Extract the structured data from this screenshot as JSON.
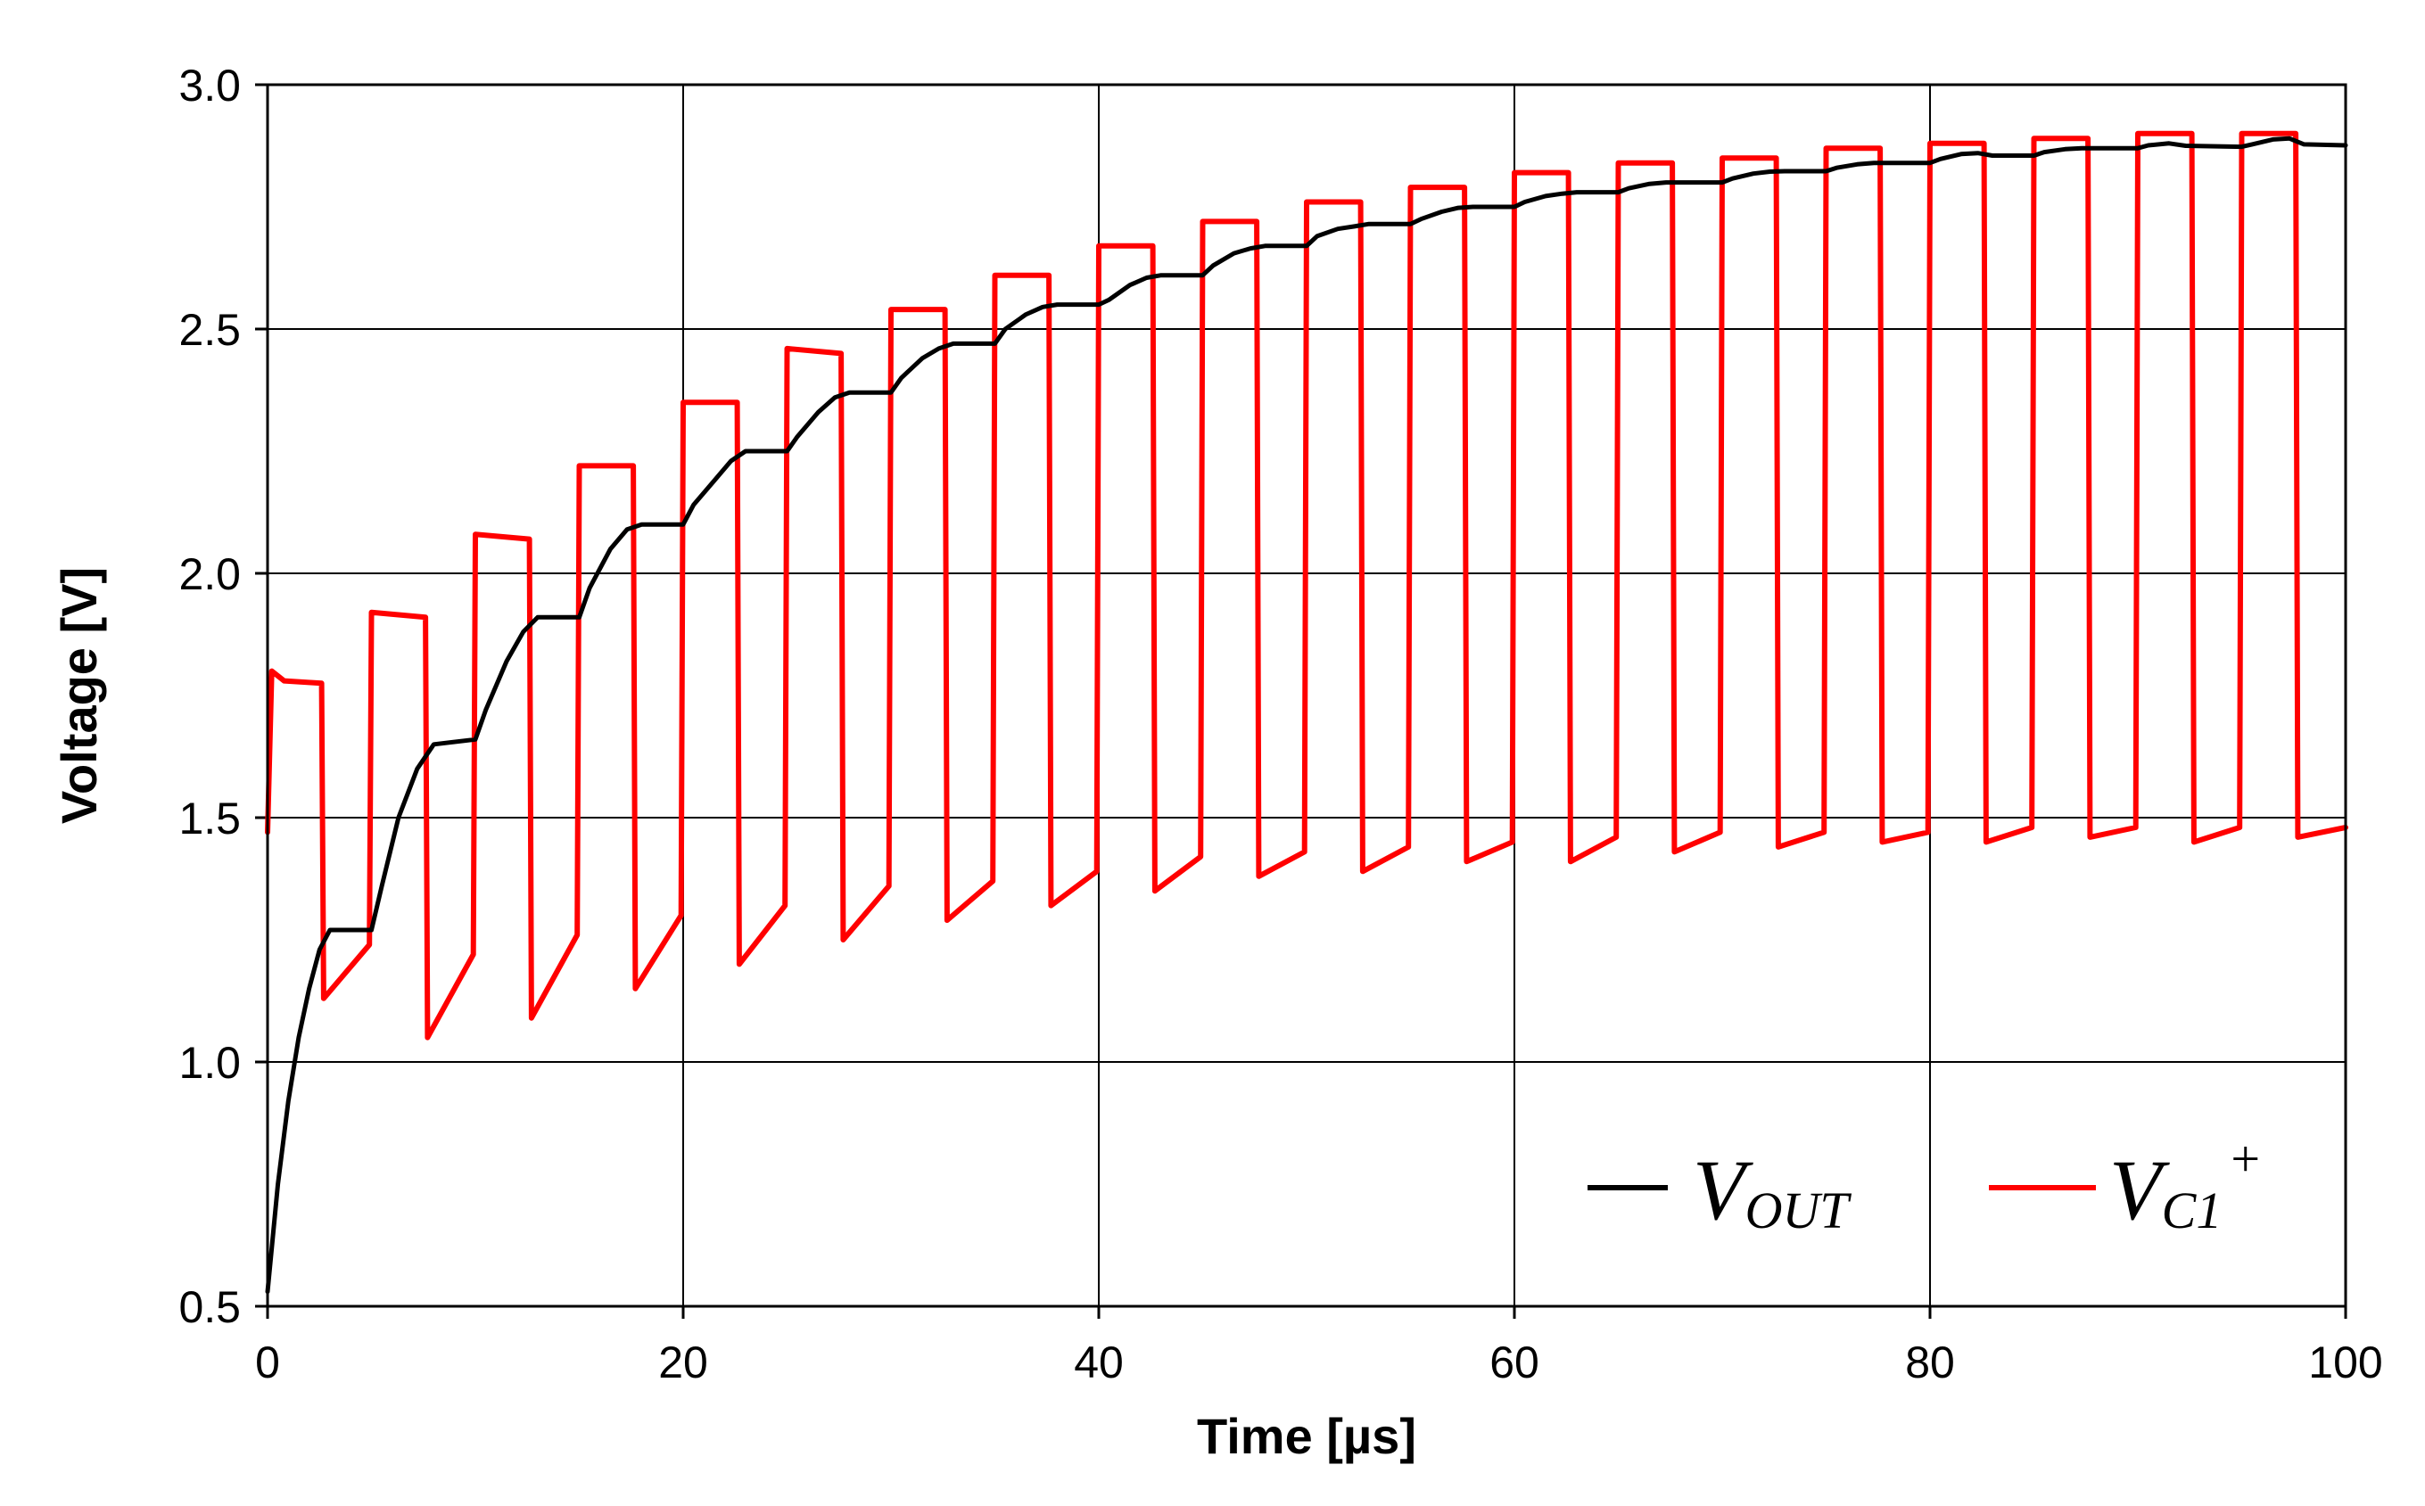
{
  "chart_data": {
    "type": "line",
    "title": "",
    "xlabel": "Time [µs]",
    "ylabel": "Voltage [V]",
    "xlim": [
      0,
      100
    ],
    "ylim": [
      0.5,
      3.0
    ],
    "xticks": [
      "0",
      "20",
      "40",
      "60",
      "80",
      "100"
    ],
    "yticks": [
      "0.5",
      "1.0",
      "1.5",
      "2.0",
      "2.5",
      "3.0"
    ],
    "grid": true,
    "legend_position": "bottom-right",
    "series": [
      {
        "name": "VOUT",
        "legend_main": "V",
        "legend_sub": "OUT",
        "legend_sup": "",
        "color": "#000000",
        "points": [
          [
            0,
            0.53
          ],
          [
            0.5,
            0.75
          ],
          [
            1,
            0.92
          ],
          [
            1.5,
            1.05
          ],
          [
            2,
            1.15
          ],
          [
            2.5,
            1.23
          ],
          [
            3,
            1.27
          ],
          [
            5,
            1.27
          ],
          [
            5.5,
            1.36
          ],
          [
            6.3,
            1.5
          ],
          [
            7.2,
            1.6
          ],
          [
            8,
            1.65
          ],
          [
            10,
            1.66
          ],
          [
            10.5,
            1.72
          ],
          [
            11.5,
            1.82
          ],
          [
            12.3,
            1.88
          ],
          [
            13,
            1.91
          ],
          [
            15,
            1.91
          ],
          [
            15.5,
            1.97
          ],
          [
            16.5,
            2.05
          ],
          [
            17.3,
            2.09
          ],
          [
            18,
            2.1
          ],
          [
            20,
            2.1
          ],
          [
            20.5,
            2.14
          ],
          [
            21.5,
            2.19
          ],
          [
            22.3,
            2.23
          ],
          [
            23,
            2.25
          ],
          [
            25,
            2.25
          ],
          [
            25.5,
            2.28
          ],
          [
            26.5,
            2.33
          ],
          [
            27.3,
            2.36
          ],
          [
            28,
            2.37
          ],
          [
            30,
            2.37
          ],
          [
            30.5,
            2.4
          ],
          [
            31.5,
            2.44
          ],
          [
            32.3,
            2.46
          ],
          [
            33,
            2.47
          ],
          [
            35,
            2.47
          ],
          [
            35.5,
            2.5
          ],
          [
            36.5,
            2.53
          ],
          [
            37.3,
            2.545
          ],
          [
            38,
            2.55
          ],
          [
            40,
            2.55
          ],
          [
            40.5,
            2.56
          ],
          [
            41.5,
            2.59
          ],
          [
            42.3,
            2.605
          ],
          [
            43,
            2.61
          ],
          [
            45,
            2.61
          ],
          [
            45.5,
            2.63
          ],
          [
            46.5,
            2.655
          ],
          [
            47.3,
            2.665
          ],
          [
            48,
            2.67
          ],
          [
            50,
            2.67
          ],
          [
            50.5,
            2.69
          ],
          [
            51.5,
            2.705
          ],
          [
            52.3,
            2.71
          ],
          [
            53,
            2.715
          ],
          [
            55,
            2.715
          ],
          [
            55.5,
            2.725
          ],
          [
            56.5,
            2.74
          ],
          [
            57.3,
            2.748
          ],
          [
            58,
            2.75
          ],
          [
            60,
            2.75
          ],
          [
            60.5,
            2.76
          ],
          [
            61.5,
            2.772
          ],
          [
            62.3,
            2.777
          ],
          [
            63,
            2.78
          ],
          [
            65,
            2.78
          ],
          [
            65.5,
            2.788
          ],
          [
            66.5,
            2.797
          ],
          [
            67.3,
            2.8
          ],
          [
            68,
            2.8
          ],
          [
            70,
            2.8
          ],
          [
            70.5,
            2.808
          ],
          [
            71.5,
            2.818
          ],
          [
            72.3,
            2.822
          ],
          [
            73,
            2.823
          ],
          [
            75,
            2.823
          ],
          [
            75.5,
            2.83
          ],
          [
            76.5,
            2.837
          ],
          [
            77.3,
            2.84
          ],
          [
            78,
            2.84
          ],
          [
            80,
            2.84
          ],
          [
            80.5,
            2.848
          ],
          [
            81.5,
            2.858
          ],
          [
            82.3,
            2.86
          ],
          [
            83,
            2.855
          ],
          [
            85,
            2.855
          ],
          [
            85.5,
            2.862
          ],
          [
            86.5,
            2.868
          ],
          [
            87.3,
            2.87
          ],
          [
            88,
            2.87
          ],
          [
            90,
            2.87
          ],
          [
            90.5,
            2.876
          ],
          [
            91.5,
            2.88
          ],
          [
            92.3,
            2.875
          ],
          [
            95,
            2.873
          ],
          [
            95.5,
            2.878
          ],
          [
            96.5,
            2.888
          ],
          [
            97.3,
            2.89
          ],
          [
            98,
            2.878
          ],
          [
            100,
            2.876
          ]
        ]
      },
      {
        "name": "VC1+",
        "legend_main": "V",
        "legend_sub": "C1",
        "legend_sup": "+",
        "color": "#ff0000",
        "points": [
          [
            0,
            1.47
          ],
          [
            0.2,
            1.8
          ],
          [
            0.8,
            1.78
          ],
          [
            2.6,
            1.775
          ],
          [
            2.7,
            1.13
          ],
          [
            4.9,
            1.24
          ],
          [
            5,
            1.92
          ],
          [
            7.6,
            1.91
          ],
          [
            7.7,
            1.05
          ],
          [
            9.9,
            1.22
          ],
          [
            10,
            2.08
          ],
          [
            12.6,
            2.07
          ],
          [
            12.7,
            1.09
          ],
          [
            14.9,
            1.26
          ],
          [
            15,
            2.22
          ],
          [
            17.6,
            2.22
          ],
          [
            17.7,
            1.15
          ],
          [
            19.9,
            1.3
          ],
          [
            20,
            2.35
          ],
          [
            22.6,
            2.35
          ],
          [
            22.7,
            1.2
          ],
          [
            24.9,
            1.32
          ],
          [
            25,
            2.46
          ],
          [
            27.6,
            2.45
          ],
          [
            27.7,
            1.25
          ],
          [
            29.9,
            1.36
          ],
          [
            30,
            2.54
          ],
          [
            32.6,
            2.54
          ],
          [
            32.7,
            1.29
          ],
          [
            34.9,
            1.37
          ],
          [
            35,
            2.61
          ],
          [
            37.6,
            2.61
          ],
          [
            37.7,
            1.32
          ],
          [
            39.9,
            1.39
          ],
          [
            40,
            2.67
          ],
          [
            42.6,
            2.67
          ],
          [
            42.7,
            1.35
          ],
          [
            44.9,
            1.42
          ],
          [
            45,
            2.72
          ],
          [
            47.6,
            2.72
          ],
          [
            47.7,
            1.38
          ],
          [
            49.9,
            1.43
          ],
          [
            50,
            2.76
          ],
          [
            52.6,
            2.76
          ],
          [
            52.7,
            1.39
          ],
          [
            54.9,
            1.44
          ],
          [
            55,
            2.79
          ],
          [
            57.6,
            2.79
          ],
          [
            57.7,
            1.41
          ],
          [
            59.9,
            1.45
          ],
          [
            60,
            2.82
          ],
          [
            62.6,
            2.82
          ],
          [
            62.7,
            1.41
          ],
          [
            64.9,
            1.46
          ],
          [
            65,
            2.84
          ],
          [
            67.6,
            2.84
          ],
          [
            67.7,
            1.43
          ],
          [
            69.9,
            1.47
          ],
          [
            70,
            2.85
          ],
          [
            72.6,
            2.85
          ],
          [
            72.7,
            1.44
          ],
          [
            74.9,
            1.47
          ],
          [
            75,
            2.87
          ],
          [
            77.6,
            2.87
          ],
          [
            77.7,
            1.45
          ],
          [
            79.9,
            1.47
          ],
          [
            80,
            2.88
          ],
          [
            82.6,
            2.88
          ],
          [
            82.7,
            1.45
          ],
          [
            84.9,
            1.48
          ],
          [
            85,
            2.89
          ],
          [
            87.6,
            2.89
          ],
          [
            87.7,
            1.46
          ],
          [
            89.9,
            1.48
          ],
          [
            90,
            2.9
          ],
          [
            92.6,
            2.9
          ],
          [
            92.7,
            1.45
          ],
          [
            94.9,
            1.48
          ],
          [
            95,
            2.9
          ],
          [
            97.6,
            2.9
          ],
          [
            97.7,
            1.46
          ],
          [
            100,
            1.48
          ]
        ]
      }
    ]
  }
}
